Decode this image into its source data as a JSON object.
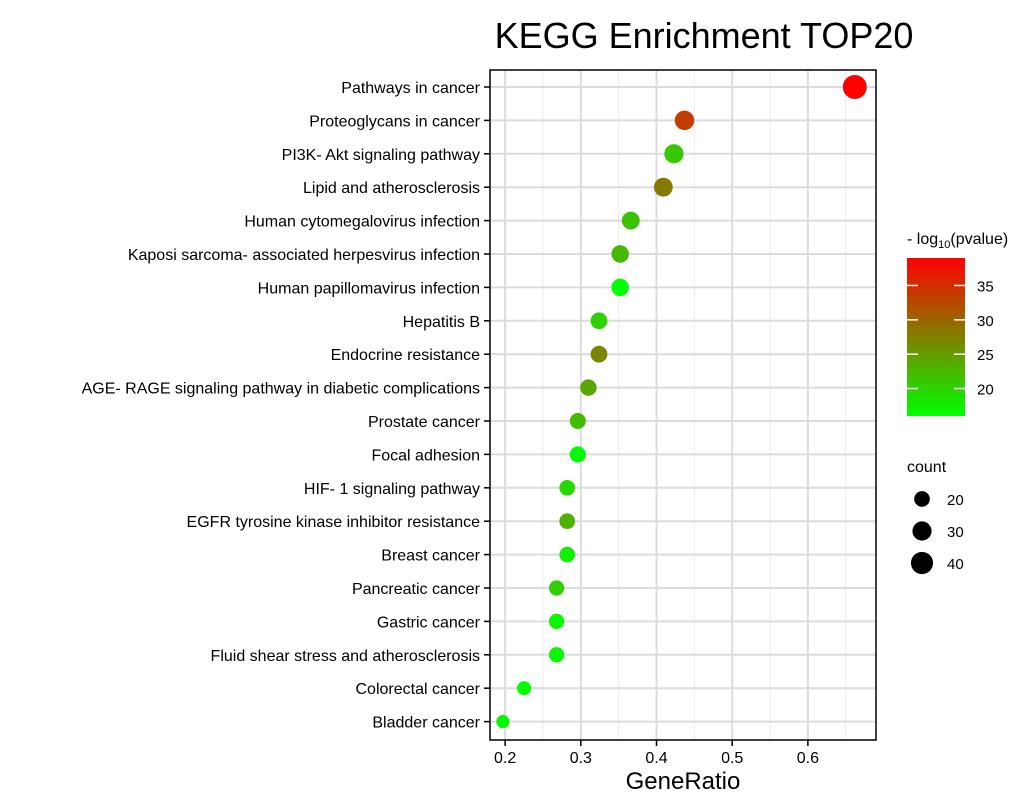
{
  "chart_data": {
    "type": "scatter",
    "title": "KEGG Enrichment TOP20",
    "xlabel": "GeneRatio",
    "ylabel": "",
    "xlim": [
      0.18,
      0.69
    ],
    "x_ticks": [
      "0.2",
      "0.3",
      "0.4",
      "0.5",
      "0.6"
    ],
    "grid": true,
    "categories": [
      "Pathways in cancer",
      "Proteoglycans in cancer",
      "PI3K- Akt signaling pathway",
      "Lipid and atherosclerosis",
      "Human cytomegalovirus infection",
      "Kaposi sarcoma- associated herpesvirus infection",
      "Human papillomavirus infection",
      "Hepatitis B",
      "Endocrine resistance",
      "AGE- RAGE signaling pathway in diabetic complications",
      "Prostate cancer",
      "Focal adhesion",
      "HIF- 1 signaling pathway",
      "EGFR tyrosine kinase inhibitor resistance",
      "Breast cancer",
      "Pancreatic cancer",
      "Gastric cancer",
      "Fluid shear stress and atherosclerosis",
      "Colorectal cancer",
      "Bladder cancer"
    ],
    "x": [
      0.662,
      0.437,
      0.423,
      0.409,
      0.366,
      0.352,
      0.352,
      0.324,
      0.324,
      0.31,
      0.296,
      0.296,
      0.282,
      0.282,
      0.282,
      0.268,
      0.268,
      0.268,
      0.225,
      0.197
    ],
    "count": [
      47,
      31,
      30,
      29,
      26,
      25,
      25,
      23,
      23,
      22,
      21,
      21,
      20,
      20,
      20,
      19,
      19,
      19,
      16,
      14
    ],
    "neg_log10_pvalue": [
      39,
      33.5,
      21,
      28,
      21.5,
      22.5,
      16,
      20,
      27,
      24,
      22,
      16.5,
      19.5,
      23,
      17.5,
      20.5,
      17,
      16.5,
      16,
      16.5
    ],
    "color_scale": {
      "title": "- log10(pvalue)",
      "title_prefix": "- log",
      "title_sub": "10",
      "title_suffix": "(pvalue)",
      "range": [
        16,
        39
      ],
      "ticks": [
        "20",
        "25",
        "30",
        "35"
      ],
      "low_color": "#00ff00",
      "high_color": "#ff0000"
    },
    "size_legend": {
      "title": "count",
      "values": [
        "20",
        "30",
        "40"
      ]
    },
    "legend_position": "right"
  }
}
